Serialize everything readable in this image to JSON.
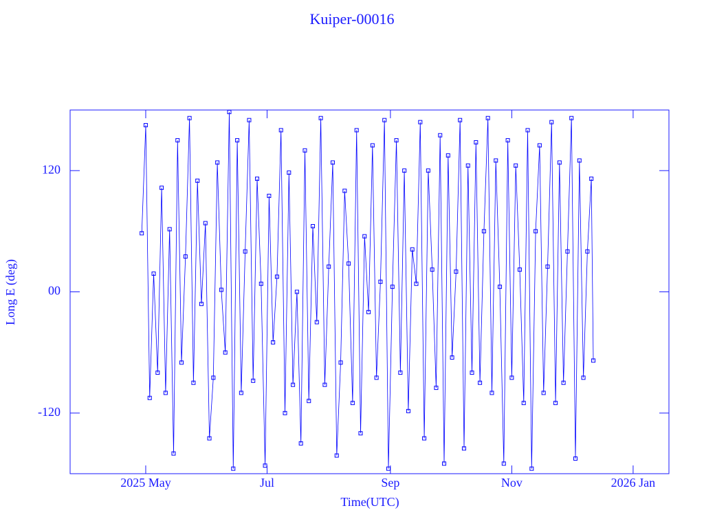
{
  "chart_data": {
    "type": "line",
    "title": "Kuiper-00016",
    "x_label": "Time(UTC)",
    "y_label": "Long E (deg)",
    "color": "#0000ff",
    "xlim": [
      "2025-03-24",
      "2026-01-19"
    ],
    "xticks": [
      {
        "value": "2025-05",
        "label": "2025 May"
      },
      {
        "value": "2025-07",
        "label": "Jul"
      },
      {
        "value": "2025-09",
        "label": "Sep"
      },
      {
        "value": "2025-11",
        "label": "Nov"
      },
      {
        "value": "2026-01",
        "label": "2026 Jan"
      }
    ],
    "ylim": [
      -180,
      180
    ],
    "yticks": [
      -120,
      {
        "value": 0,
        "label": "00"
      },
      120
    ],
    "x": [
      "2025-04-29",
      "2025-05-01",
      "2025-05-03",
      "2025-05-05",
      "2025-05-07",
      "2025-05-09",
      "2025-05-11",
      "2025-05-13",
      "2025-05-15",
      "2025-05-17",
      "2025-05-19",
      "2025-05-21",
      "2025-05-23",
      "2025-05-25",
      "2025-05-27",
      "2025-05-29",
      "2025-05-31",
      "2025-06-02",
      "2025-06-04",
      "2025-06-06",
      "2025-06-08",
      "2025-06-10",
      "2025-06-12",
      "2025-06-14",
      "2025-06-16",
      "2025-06-18",
      "2025-06-20",
      "2025-06-22",
      "2025-06-24",
      "2025-06-26",
      "2025-06-28",
      "2025-06-30",
      "2025-07-02",
      "2025-07-04",
      "2025-07-06",
      "2025-07-08",
      "2025-07-10",
      "2025-07-12",
      "2025-07-14",
      "2025-07-16",
      "2025-07-18",
      "2025-07-20",
      "2025-07-22",
      "2025-07-24",
      "2025-07-26",
      "2025-07-28",
      "2025-07-30",
      "2025-08-01",
      "2025-08-03",
      "2025-08-05",
      "2025-08-07",
      "2025-08-09",
      "2025-08-11",
      "2025-08-13",
      "2025-08-15",
      "2025-08-17",
      "2025-08-19",
      "2025-08-21",
      "2025-08-23",
      "2025-08-25",
      "2025-08-27",
      "2025-08-29",
      "2025-08-31",
      "2025-09-02",
      "2025-09-04",
      "2025-09-06",
      "2025-09-08",
      "2025-09-10",
      "2025-09-12",
      "2025-09-14",
      "2025-09-16",
      "2025-09-18",
      "2025-09-20",
      "2025-09-22",
      "2025-09-24",
      "2025-09-26",
      "2025-09-28",
      "2025-09-30",
      "2025-10-02",
      "2025-10-04",
      "2025-10-06",
      "2025-10-08",
      "2025-10-10",
      "2025-10-12",
      "2025-10-14",
      "2025-10-16",
      "2025-10-18",
      "2025-10-20",
      "2025-10-22",
      "2025-10-24",
      "2025-10-26",
      "2025-10-28",
      "2025-10-30",
      "2025-11-01",
      "2025-11-03",
      "2025-11-05",
      "2025-11-07",
      "2025-11-09",
      "2025-11-11",
      "2025-11-13",
      "2025-11-15",
      "2025-11-17",
      "2025-11-19",
      "2025-11-21",
      "2025-11-23",
      "2025-11-25",
      "2025-11-27",
      "2025-11-29",
      "2025-12-01",
      "2025-12-03",
      "2025-12-05",
      "2025-12-07",
      "2025-12-09",
      "2025-12-11",
      "2025-12-12"
    ],
    "values": [
      58,
      165,
      -105,
      18,
      -80,
      103,
      -100,
      62,
      -160,
      150,
      -70,
      35,
      172,
      -90,
      110,
      -12,
      68,
      -145,
      -85,
      128,
      2,
      -60,
      178,
      -175,
      150,
      -100,
      40,
      170,
      -88,
      112,
      8,
      -172,
      95,
      -50,
      15,
      160,
      -120,
      118,
      -92,
      0,
      -150,
      140,
      -108,
      65,
      -30,
      172,
      -92,
      25,
      128,
      -162,
      -70,
      100,
      28,
      -110,
      160,
      -140,
      55,
      -20,
      145,
      -85,
      10,
      170,
      -175,
      5,
      150,
      -80,
      120,
      -118,
      42,
      8,
      168,
      -145,
      120,
      22,
      -95,
      155,
      -170,
      135,
      -65,
      20,
      170,
      -155,
      125,
      -80,
      148,
      -90,
      60,
      172,
      -100,
      130,
      5,
      -170,
      150,
      -85,
      125,
      22,
      -110,
      160,
      -175,
      60,
      145,
      -100,
      25,
      168,
      -110,
      128,
      -90,
      40,
      172,
      -165,
      130,
      -85,
      40,
      112,
      -68
    ]
  }
}
